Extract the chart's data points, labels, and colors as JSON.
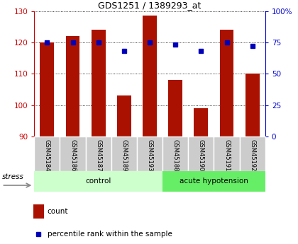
{
  "title": "GDS1251 / 1389293_at",
  "categories": [
    "GSM45184",
    "GSM45186",
    "GSM45187",
    "GSM45189",
    "GSM45193",
    "GSM45188",
    "GSM45190",
    "GSM45191",
    "GSM45192"
  ],
  "count_values": [
    120.0,
    122.0,
    124.0,
    103.0,
    128.5,
    108.0,
    99.0,
    124.0,
    110.0
  ],
  "percentile_values": [
    75,
    75,
    75,
    68,
    75,
    73,
    68,
    75,
    72
  ],
  "ylim_left": [
    90,
    130
  ],
  "ylim_right": [
    0,
    100
  ],
  "yticks_left": [
    90,
    100,
    110,
    120,
    130
  ],
  "yticks_right": [
    0,
    25,
    50,
    75,
    100
  ],
  "ytick_labels_right": [
    "0",
    "25",
    "50",
    "75",
    "100%"
  ],
  "bar_color": "#aa1100",
  "point_color": "#0000bb",
  "group1_label": "control",
  "group2_label": "acute hypotension",
  "group1_indices": [
    0,
    1,
    2,
    3,
    4
  ],
  "group2_indices": [
    5,
    6,
    7,
    8
  ],
  "stress_label": "stress",
  "legend_count": "count",
  "legend_percentile": "percentile rank within the sample",
  "bg_gray": "#cccccc",
  "bg_light_green": "#ccffcc",
  "bg_dark_green": "#66ee66",
  "left_axis_color": "#cc0000",
  "right_axis_color": "#0000cc"
}
